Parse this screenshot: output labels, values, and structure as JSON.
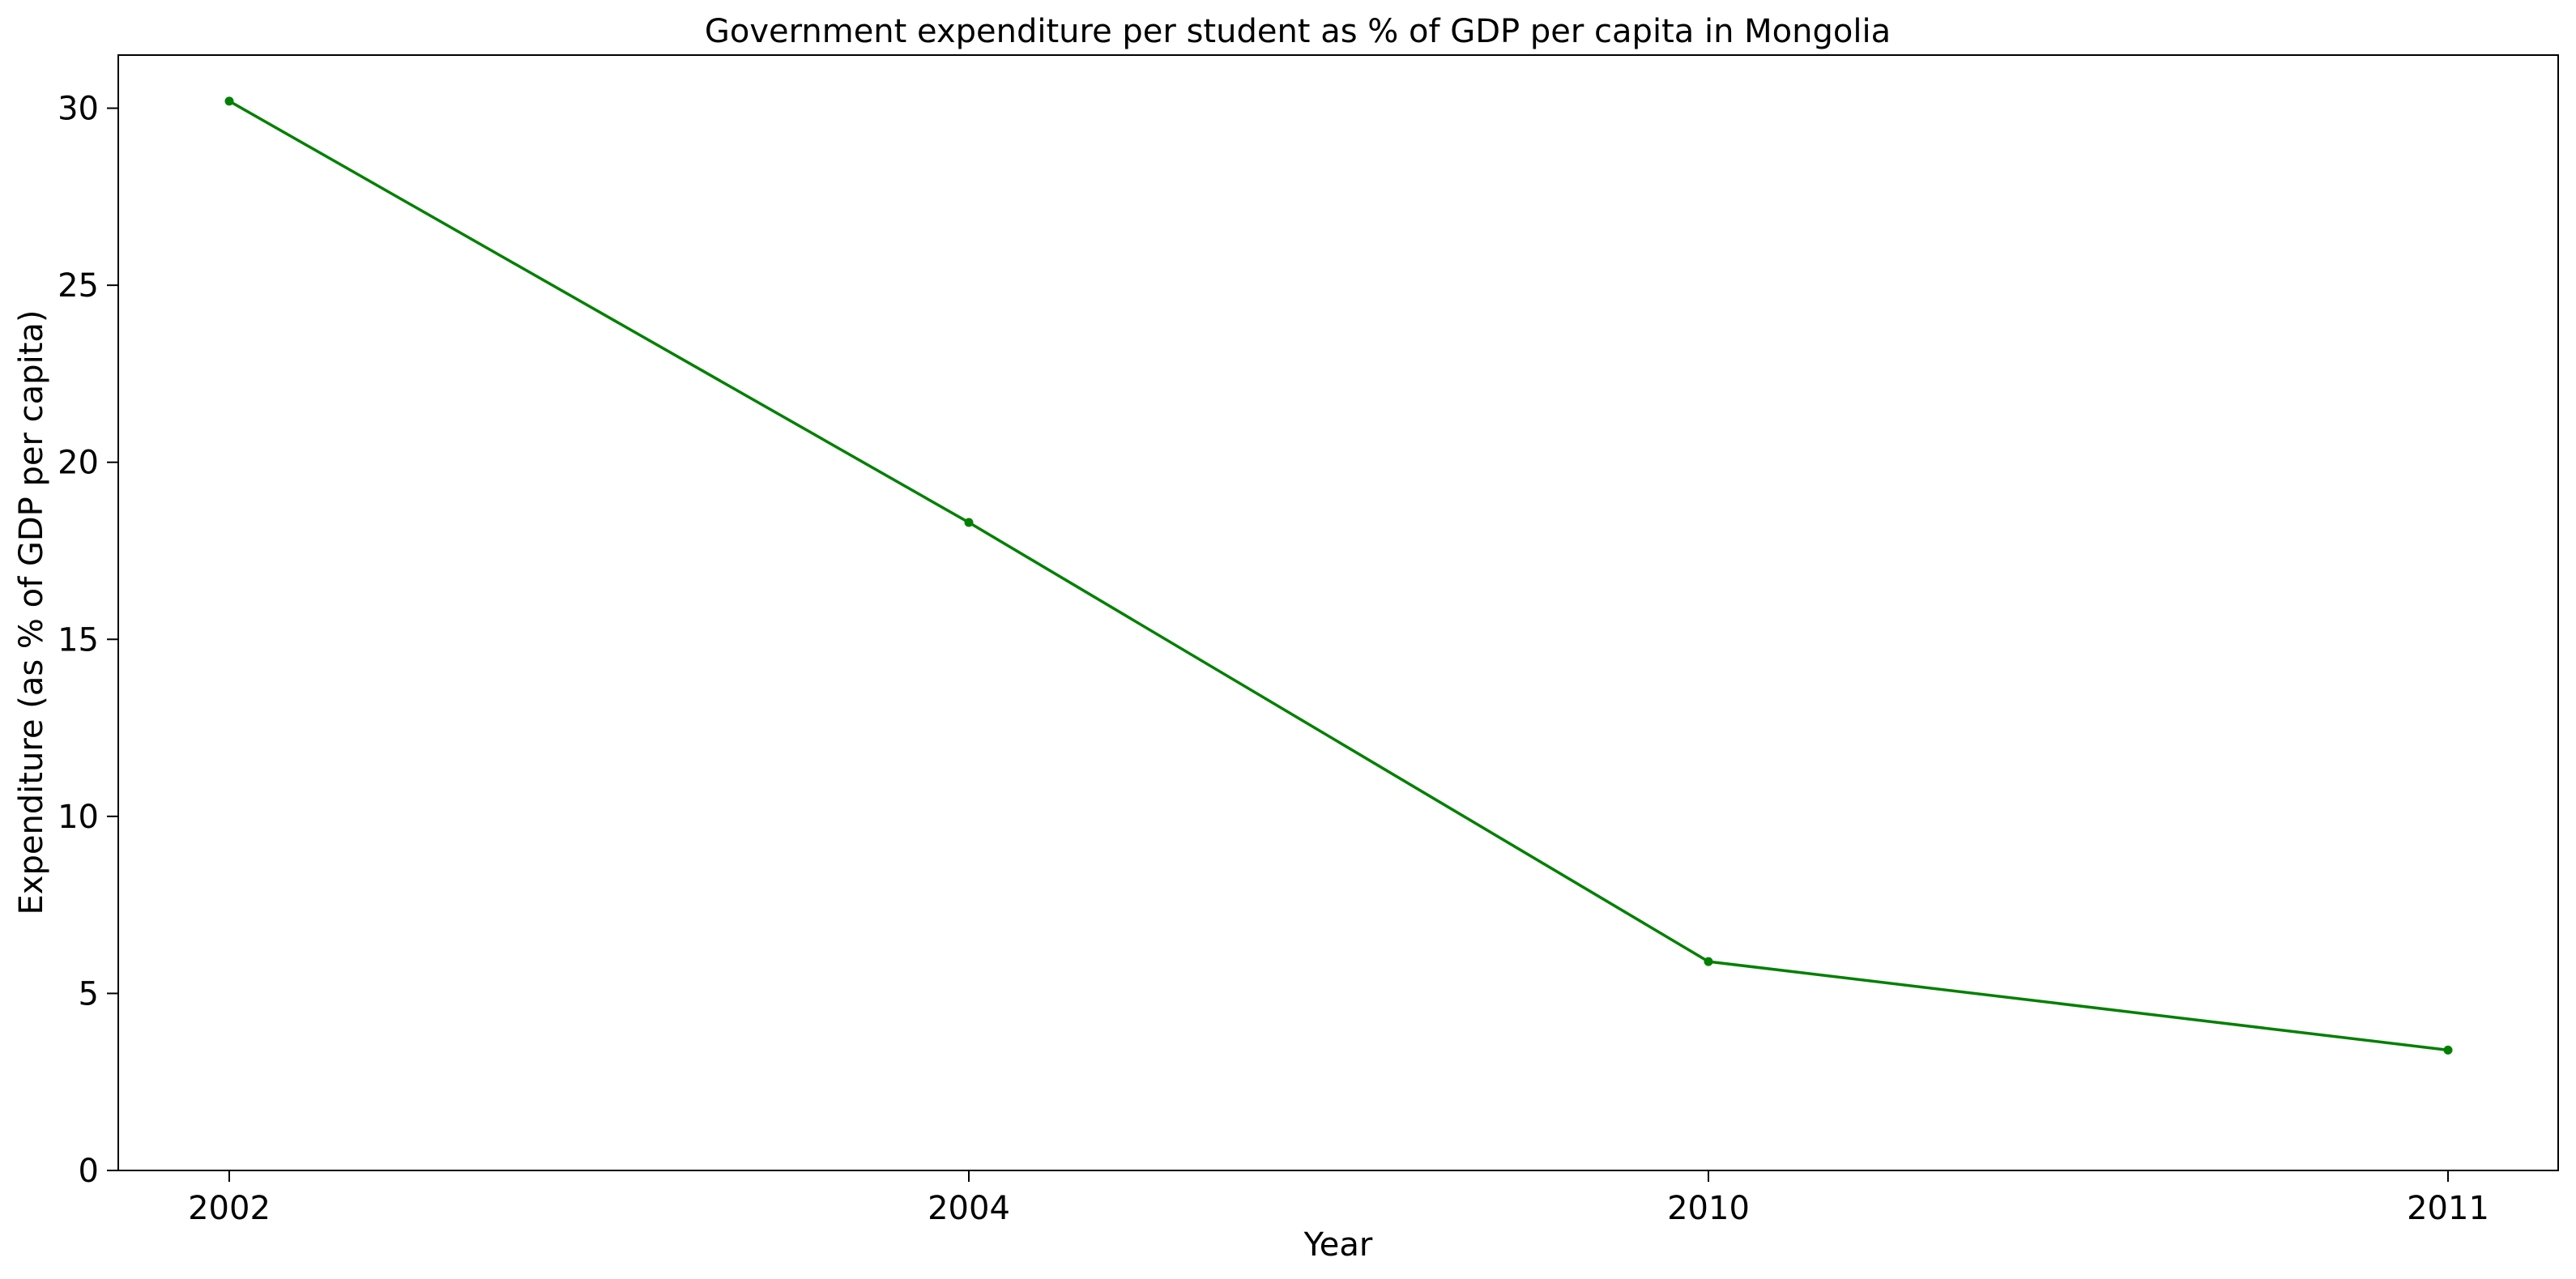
{
  "chart_data": {
    "type": "line",
    "title": "Government expenditure per student as % of GDP per capita in Mongolia",
    "xlabel": "Year",
    "ylabel": "Expenditure (as % of GDP per capita)",
    "categories": [
      "2002",
      "2004",
      "2010",
      "2011"
    ],
    "series": [
      {
        "values": [
          30.2,
          18.3,
          5.9,
          3.4
        ],
        "color": "#008000"
      }
    ],
    "ylim": [
      0,
      31.5
    ],
    "yticks": [
      0,
      5,
      10,
      15,
      20,
      25,
      30
    ],
    "grid": false,
    "legend": "none"
  }
}
